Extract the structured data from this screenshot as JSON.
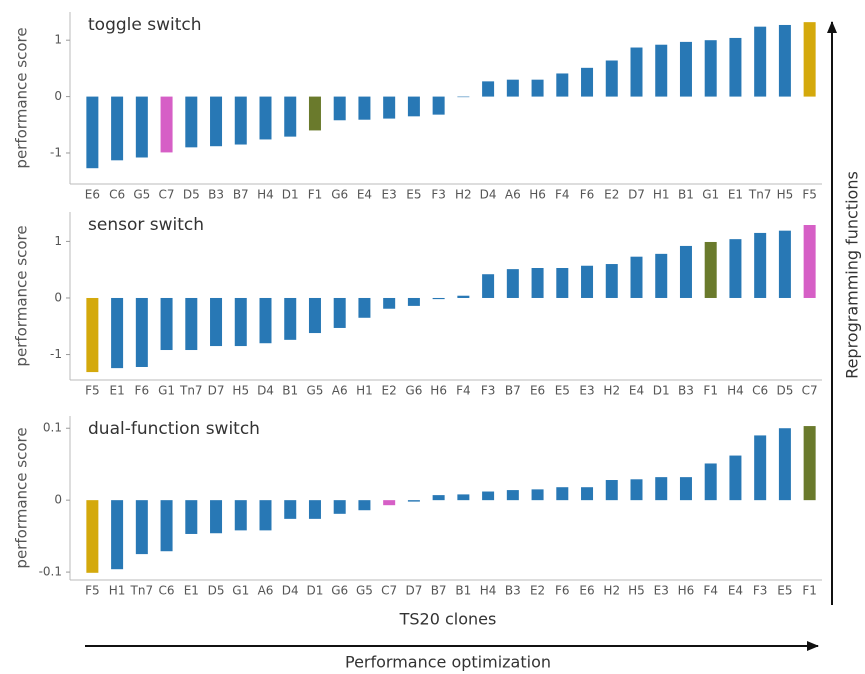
{
  "chart_data": [
    {
      "type": "bar",
      "title": "toggle switch",
      "ylabel": "performance score",
      "categories": [
        "E6",
        "C6",
        "G5",
        "C7",
        "D5",
        "B3",
        "B7",
        "H4",
        "D1",
        "F1",
        "G6",
        "E4",
        "E3",
        "E5",
        "F3",
        "H2",
        "D4",
        "A6",
        "H6",
        "F4",
        "F6",
        "E2",
        "D7",
        "H1",
        "B1",
        "G1",
        "E1",
        "Tn7",
        "H5",
        "F5"
      ],
      "values": [
        -1.27,
        -1.13,
        -1.08,
        -0.99,
        -0.9,
        -0.88,
        -0.85,
        -0.76,
        -0.71,
        -0.6,
        -0.42,
        -0.41,
        -0.39,
        -0.35,
        -0.32,
        -0.01,
        0.27,
        0.3,
        0.3,
        0.41,
        0.51,
        0.64,
        0.87,
        0.92,
        0.97,
        1.0,
        1.04,
        1.24,
        1.27,
        1.32
      ],
      "colors": [
        "#2878b5",
        "#2878b5",
        "#2878b5",
        "#d65fc6",
        "#2878b5",
        "#2878b5",
        "#2878b5",
        "#2878b5",
        "#2878b5",
        "#6a7a2c",
        "#2878b5",
        "#2878b5",
        "#2878b5",
        "#2878b5",
        "#2878b5",
        "#2878b5",
        "#2878b5",
        "#2878b5",
        "#2878b5",
        "#2878b5",
        "#2878b5",
        "#2878b5",
        "#2878b5",
        "#2878b5",
        "#2878b5",
        "#2878b5",
        "#2878b5",
        "#2878b5",
        "#2878b5",
        "#d4a90c"
      ],
      "ylim": [
        -1.55,
        1.5
      ],
      "yticks": [
        -1,
        0,
        1
      ]
    },
    {
      "type": "bar",
      "title": "sensor switch",
      "ylabel": "performance score",
      "categories": [
        "F5",
        "E1",
        "F6",
        "G1",
        "Tn7",
        "D7",
        "H5",
        "D4",
        "B1",
        "G5",
        "A6",
        "H1",
        "E2",
        "G6",
        "H6",
        "F4",
        "F3",
        "B7",
        "E6",
        "E5",
        "E3",
        "H2",
        "E4",
        "D1",
        "B3",
        "F1",
        "H4",
        "C6",
        "D5",
        "C7"
      ],
      "values": [
        -1.31,
        -1.24,
        -1.22,
        -0.92,
        -0.92,
        -0.85,
        -0.85,
        -0.8,
        -0.74,
        -0.62,
        -0.53,
        -0.35,
        -0.19,
        -0.14,
        -0.02,
        0.04,
        0.42,
        0.51,
        0.53,
        0.53,
        0.57,
        0.6,
        0.73,
        0.78,
        0.92,
        0.99,
        1.04,
        1.15,
        1.19,
        1.29
      ],
      "colors": [
        "#d4a90c",
        "#2878b5",
        "#2878b5",
        "#2878b5",
        "#2878b5",
        "#2878b5",
        "#2878b5",
        "#2878b5",
        "#2878b5",
        "#2878b5",
        "#2878b5",
        "#2878b5",
        "#2878b5",
        "#2878b5",
        "#2878b5",
        "#2878b5",
        "#2878b5",
        "#2878b5",
        "#2878b5",
        "#2878b5",
        "#2878b5",
        "#2878b5",
        "#2878b5",
        "#2878b5",
        "#2878b5",
        "#6a7a2c",
        "#2878b5",
        "#2878b5",
        "#2878b5",
        "#d65fc6"
      ],
      "ylim": [
        -1.45,
        1.52
      ],
      "yticks": [
        -1,
        0,
        1
      ]
    },
    {
      "type": "bar",
      "title": "dual-function switch",
      "ylabel": "performance score",
      "categories": [
        "F5",
        "H1",
        "Tn7",
        "C6",
        "E1",
        "D5",
        "G1",
        "A6",
        "D4",
        "D1",
        "G6",
        "G5",
        "C7",
        "D7",
        "B7",
        "B1",
        "H4",
        "B3",
        "E2",
        "F6",
        "E6",
        "H2",
        "H5",
        "E3",
        "H6",
        "F4",
        "E4",
        "F3",
        "E5",
        "F1"
      ],
      "values": [
        -0.101,
        -0.096,
        -0.075,
        -0.071,
        -0.047,
        -0.046,
        -0.042,
        -0.042,
        -0.026,
        -0.026,
        -0.019,
        -0.014,
        -0.007,
        -0.002,
        0.007,
        0.008,
        0.012,
        0.014,
        0.015,
        0.018,
        0.018,
        0.028,
        0.029,
        0.032,
        0.032,
        0.051,
        0.062,
        0.09,
        0.1,
        0.103
      ],
      "colors": [
        "#d4a90c",
        "#2878b5",
        "#2878b5",
        "#2878b5",
        "#2878b5",
        "#2878b5",
        "#2878b5",
        "#2878b5",
        "#2878b5",
        "#2878b5",
        "#2878b5",
        "#2878b5",
        "#d65fc6",
        "#2878b5",
        "#2878b5",
        "#2878b5",
        "#2878b5",
        "#2878b5",
        "#2878b5",
        "#2878b5",
        "#2878b5",
        "#2878b5",
        "#2878b5",
        "#2878b5",
        "#2878b5",
        "#2878b5",
        "#2878b5",
        "#2878b5",
        "#2878b5",
        "#6a7a2c"
      ],
      "ylim": [
        -0.111,
        0.117
      ],
      "yticks": [
        -0.1,
        0,
        0.1
      ]
    }
  ],
  "xlabel": "TS20 clones",
  "bottom_arrow": "Performance optimization",
  "right_arrow": "Reprogramming functions"
}
